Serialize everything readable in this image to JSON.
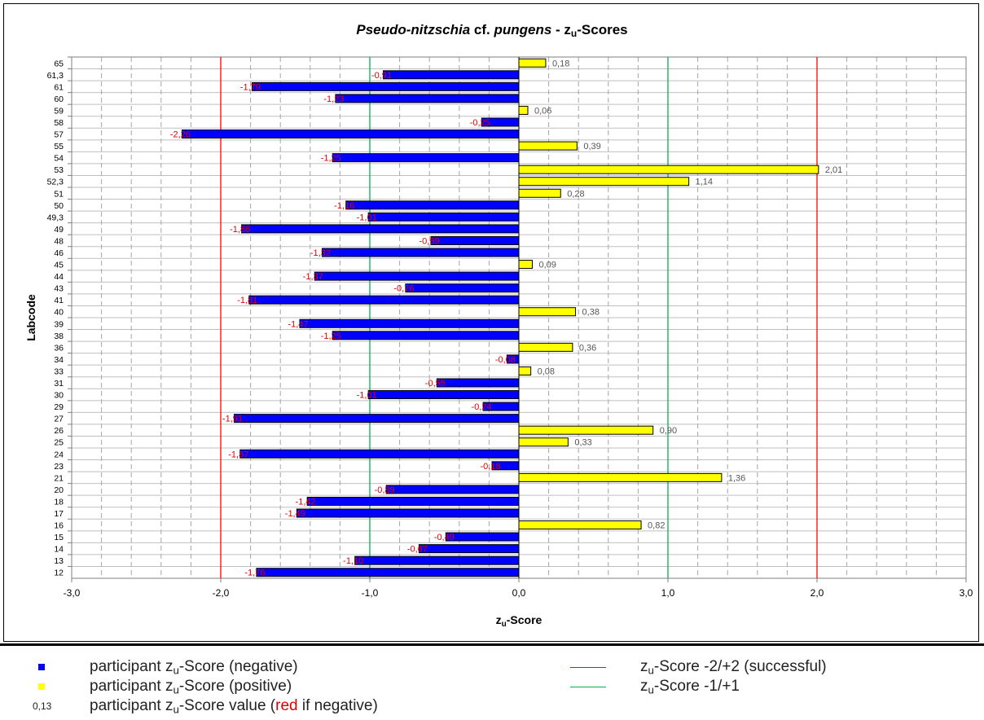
{
  "chart_data": {
    "type": "bar",
    "orientation": "horizontal",
    "title_italic": "Pseudo-nitzschia",
    "title_mid": " cf. ",
    "title_italic2": "pungens",
    "title_suffix": " - z",
    "title_sub": "u",
    "title_end": "-Scores",
    "xlabel_main": "z",
    "xlabel_sub": "u",
    "xlabel_end": "-Score",
    "ylabel": "Labcode",
    "xlim": [
      -3.0,
      3.0
    ],
    "xticks": [
      "-3,0",
      "-2,0",
      "-1,0",
      "0,0",
      "1,0",
      "2,0",
      "3,0"
    ],
    "xtick_values": [
      -3,
      -2,
      -1,
      0,
      1,
      2,
      3
    ],
    "grid": true,
    "categories": [
      "65",
      "61,3",
      "61",
      "60",
      "59",
      "58",
      "57",
      "55",
      "54",
      "53",
      "52,3",
      "51",
      "50",
      "49,3",
      "49",
      "48",
      "46",
      "45",
      "44",
      "43",
      "41",
      "40",
      "39",
      "38",
      "36",
      "34",
      "33",
      "31",
      "30",
      "29",
      "27",
      "26",
      "25",
      "24",
      "23",
      "21",
      "20",
      "18",
      "17",
      "16",
      "15",
      "14",
      "13",
      "12"
    ],
    "values": [
      0.18,
      -0.91,
      -1.79,
      -1.23,
      0.06,
      -0.25,
      -2.26,
      0.39,
      -1.25,
      2.01,
      1.14,
      0.28,
      -1.16,
      -1.01,
      -1.86,
      -0.59,
      -1.32,
      0.09,
      -1.37,
      -0.76,
      -1.81,
      0.38,
      -1.47,
      -1.25,
      0.36,
      -0.08,
      0.08,
      -0.55,
      -1.01,
      -0.24,
      -1.91,
      0.9,
      0.33,
      -1.87,
      -0.18,
      1.36,
      -0.89,
      -1.42,
      -1.49,
      0.82,
      -0.49,
      -0.67,
      -1.1,
      -1.76
    ],
    "value_labels": [
      "0,18",
      "-0,91",
      "-1,79",
      "-1,23",
      "0,06",
      "-0,25",
      "-2,26",
      "0,39",
      "-1,25",
      "2,01",
      "1,14",
      "0,28",
      "-1,16",
      "-1,01",
      "-1,86",
      "-0,59",
      "-1,32",
      "0,09",
      "-1,37",
      "-0,76",
      "-1,81",
      "0,38",
      "-1,47",
      "-1,25",
      "0,36",
      "-0,08",
      "0,08",
      "-0,55",
      "-1,01",
      "-0,24",
      "-1,91",
      "0,90",
      "0,33",
      "-1,87",
      "-0,18",
      "1,36",
      "-0,89",
      "-1,42",
      "-1,49",
      "0,82",
      "-0,49",
      "-0,67",
      "-1,10",
      "-1,76"
    ],
    "reference_lines": [
      {
        "value": -2,
        "color": "#ff0000"
      },
      {
        "value": 2,
        "color": "#ff0000"
      },
      {
        "value": -1,
        "color": "#00b050"
      },
      {
        "value": 1,
        "color": "#00b050"
      }
    ],
    "colors": {
      "negative": "#0000ff",
      "positive": "#ffff00",
      "negative_label": "#e00000",
      "positive_label": "#555555",
      "bar_outline": "#000000",
      "grid": "#bfbfbf"
    }
  },
  "legend": {
    "neg_prefix": "participant z",
    "neg_sub": "u",
    "neg_suffix": "-Score (negative)",
    "pos_prefix": "participant z",
    "pos_sub": "u",
    "pos_suffix": "-Score (positive)",
    "val_symbol": "0,13",
    "val_prefix": "participant z",
    "val_sub": "u",
    "val_mid": "-Score value (",
    "val_red": "red",
    "val_suffix": " if negative)",
    "red_prefix": "z",
    "red_sub": "u",
    "red_suffix": "-Score -2/+2 (successful)",
    "green_prefix": "z",
    "green_sub": "u",
    "green_suffix": "-Score -1/+1"
  }
}
